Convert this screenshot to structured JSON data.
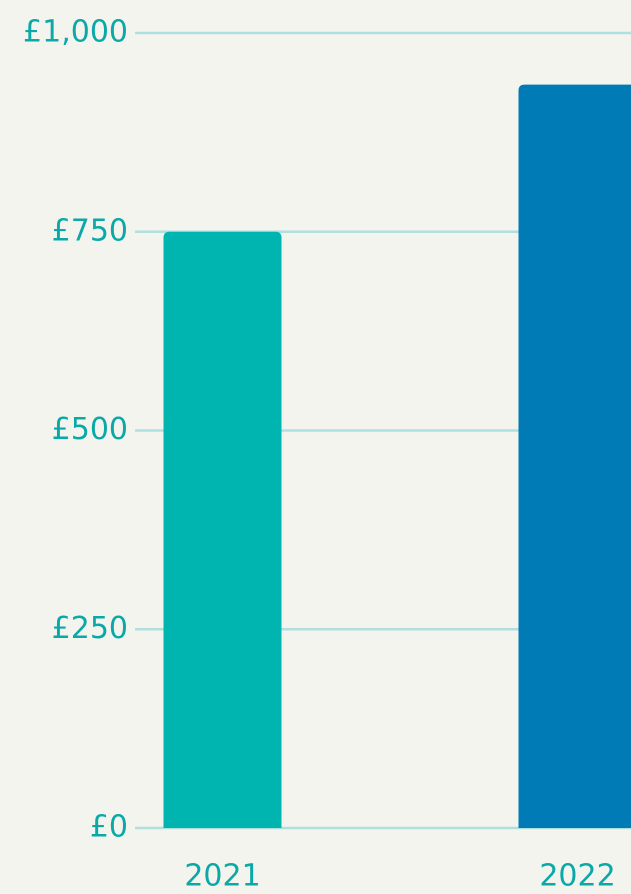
{
  "chart_data": {
    "type": "bar",
    "categories": [
      "2021",
      "2022"
    ],
    "values": [
      750,
      935
    ],
    "colors": [
      "#00b5b0",
      "#007bb6"
    ],
    "ylim": [
      0,
      1000
    ],
    "yticks": [
      {
        "value": 0,
        "label": "£0"
      },
      {
        "value": 250,
        "label": "£250"
      },
      {
        "value": 500,
        "label": "£500"
      },
      {
        "value": 750,
        "label": "£750"
      },
      {
        "value": 1000,
        "label": "£1,000"
      }
    ],
    "grid": true
  }
}
